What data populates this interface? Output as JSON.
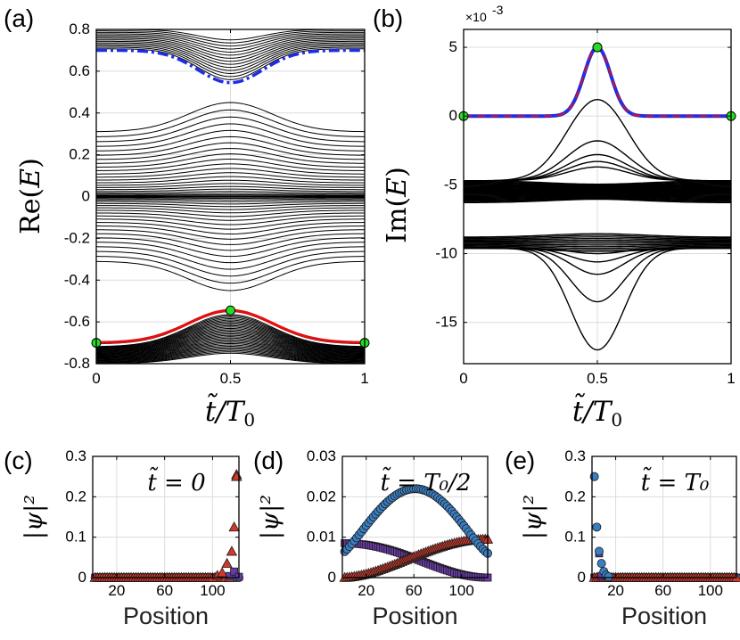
{
  "chart_data": [
    {
      "id": "a",
      "type": "line",
      "panel_label": "(a)",
      "xlabel": "t̃/T₀",
      "ylabel": "Re(E)",
      "xlim": [
        0,
        1
      ],
      "ylim": [
        -0.8,
        0.8
      ],
      "xticks": [
        0,
        0.5,
        1
      ],
      "xtick_labels": [
        "0",
        "0.5",
        "1"
      ],
      "yticks": [
        -0.8,
        -0.6,
        -0.4,
        -0.2,
        0,
        0.2,
        0.4,
        0.6,
        0.8
      ],
      "ytick_labels": [
        "-0.8",
        "-0.6",
        "-0.4",
        "-0.2",
        "0",
        "0.2",
        "0.4",
        "0.6",
        "0.8"
      ],
      "grid": true,
      "bands": [
        {
          "name": "lower band",
          "color": "#000000",
          "edge": [
            -0.7,
            -0.545
          ],
          "floor": [
            -0.8,
            -0.75
          ],
          "count": 32
        },
        {
          "name": "middle band",
          "color": "#000000",
          "top": [
            0.31,
            0.45
          ],
          "bottom": [
            -0.31,
            -0.45
          ],
          "count": 46
        },
        {
          "name": "upper band",
          "color": "#000000",
          "edge": [
            0.7,
            0.545
          ],
          "ceil": [
            0.8,
            0.75
          ],
          "count": 14
        }
      ],
      "series": [
        {
          "name": "upper edge state",
          "color": "#1f2ee6",
          "style": "dash-dot",
          "x": [
            0,
            0.5,
            1
          ],
          "y": [
            0.7,
            0.545,
            0.7
          ]
        },
        {
          "name": "lower edge state",
          "color": "#e01010",
          "style": "solid",
          "x": [
            0,
            0.5,
            1
          ],
          "y": [
            -0.7,
            -0.545,
            -0.7
          ]
        }
      ],
      "markers": [
        {
          "x": 0,
          "y": -0.7,
          "color": "#22dd22"
        },
        {
          "x": 0.5,
          "y": -0.545,
          "color": "#22dd22"
        },
        {
          "x": 1,
          "y": -0.7,
          "color": "#22dd22"
        }
      ]
    },
    {
      "id": "b",
      "type": "line",
      "panel_label": "(b)",
      "xlabel": "t̃/T₀",
      "ylabel": "Im(E)",
      "multiplier": "×10",
      "multiplier_exp": "-3",
      "xlim": [
        0,
        1
      ],
      "ylim": [
        -18,
        6.3
      ],
      "xticks": [
        0,
        0.5,
        1
      ],
      "xtick_labels": [
        "0",
        "0.5",
        "1"
      ],
      "yticks": [
        5,
        0,
        -5,
        -10,
        -15
      ],
      "ytick_labels": [
        "5",
        "0",
        "-5",
        "-10",
        "-15"
      ],
      "grid": true,
      "bands": [
        {
          "name": "band near -5",
          "range": [
            -4.7,
            -6.3
          ]
        },
        {
          "name": "band near -9",
          "range": [
            -8.8,
            -9.6
          ]
        }
      ],
      "series": [
        {
          "name": "edge state",
          "color": "#1f2ee6",
          "dash_color": "#e01010",
          "x": [
            0,
            0.5,
            1
          ],
          "y": [
            0,
            5,
            0
          ]
        },
        {
          "name": "peak branches",
          "color": "#000000",
          "x": [
            0,
            0.5,
            1
          ],
          "peaks": [
            1.2,
            -1.8,
            -2.8,
            -3.3,
            -3.7
          ]
        },
        {
          "name": "dip branches",
          "color": "#000000",
          "x": [
            0,
            0.5,
            1
          ],
          "dips": [
            -17,
            -13.5,
            -11.5,
            -10.6,
            -10.0
          ]
        }
      ],
      "markers": [
        {
          "x": 0,
          "y": 0,
          "color": "#22dd22"
        },
        {
          "x": 0.5,
          "y": 5,
          "color": "#22dd22"
        },
        {
          "x": 1,
          "y": 0,
          "color": "#22dd22"
        }
      ]
    },
    {
      "id": "c",
      "type": "scatter",
      "panel_label": "(c)",
      "annotation": "t̃ = 0",
      "xlabel": "Position",
      "ylabel": "|ψ|²",
      "xlim": [
        0,
        122
      ],
      "ylim": [
        0,
        0.3
      ],
      "xticks": [
        20,
        60,
        100
      ],
      "xtick_labels": [
        "20",
        "60",
        "100"
      ],
      "yticks": [
        0,
        0.1,
        0.2,
        0.3
      ],
      "ytick_labels": [
        "0",
        "0.1",
        "0.2",
        "0.3"
      ],
      "grid": true,
      "series": [
        {
          "name": "left-localized",
          "marker": "circle",
          "color": "#3a7fc1",
          "x": [],
          "y": []
        },
        {
          "name": "right-localized",
          "marker": "triangle",
          "color": "#d03a2c",
          "x": [
            100,
            104,
            108,
            112,
            116,
            118,
            120,
            122
          ],
          "y": [
            0,
            0.005,
            0.012,
            0.035,
            0.065,
            0.125,
            0.255,
            0.25
          ]
        },
        {
          "name": "bulk",
          "marker": "square",
          "color": "#6a3aa8",
          "x": [
            114,
            118,
            122
          ],
          "y": [
            0.004,
            0.015,
            0.002
          ]
        }
      ]
    },
    {
      "id": "d",
      "type": "scatter",
      "panel_label": "(d)",
      "annotation": "t̃ = T₀/2",
      "xlabel": "Position",
      "ylabel": "|ψ|²",
      "xlim": [
        0,
        122
      ],
      "ylim": [
        0,
        0.03
      ],
      "xticks": [
        20,
        60,
        100
      ],
      "xtick_labels": [
        "20",
        "60",
        "100"
      ],
      "yticks": [
        0,
        0.01,
        0.02,
        0.03
      ],
      "ytick_labels": [
        "0",
        "0.01",
        "0.02",
        "0.03"
      ],
      "grid": true,
      "series": [
        {
          "name": "circle-marker state",
          "marker": "circle",
          "color": "#3a7fc1",
          "peak_x": 60,
          "peak_y": 0.022,
          "edge_y": 0.006
        },
        {
          "name": "triangle-marker state",
          "marker": "triangle",
          "color": "#d03a2c",
          "start_y": 0.0,
          "end_y": 0.0095
        },
        {
          "name": "square-marker state",
          "marker": "square",
          "color": "#6a3aa8",
          "start_y": 0.0085,
          "mid_y": 0.005,
          "end_y": 0.0
        }
      ]
    },
    {
      "id": "e",
      "type": "scatter",
      "panel_label": "(e)",
      "annotation": "t̃ = T₀",
      "xlabel": "Position",
      "ylabel": "|ψ|²",
      "xlim": [
        0,
        122
      ],
      "ylim": [
        0,
        0.3
      ],
      "xticks": [
        20,
        60,
        100
      ],
      "xtick_labels": [
        "20",
        "60",
        "100"
      ],
      "yticks": [
        0,
        0.1,
        0.2,
        0.3
      ],
      "ytick_labels": [
        "0",
        "0.1",
        "0.2",
        "0.3"
      ],
      "grid": true,
      "series": [
        {
          "name": "left-localized",
          "marker": "circle",
          "color": "#3a7fc1",
          "x": [
            2,
            4,
            6,
            8,
            10,
            12,
            14
          ],
          "y": [
            0.25,
            0.125,
            0.065,
            0.035,
            0.015,
            0.006,
            0.002
          ]
        },
        {
          "name": "right-localized",
          "marker": "triangle",
          "color": "#d03a2c",
          "x": [],
          "y": []
        },
        {
          "name": "bulk",
          "marker": "square",
          "color": "#6a3aa8",
          "x": [
            6,
            8
          ],
          "y": [
            0.06,
            0.004
          ]
        }
      ]
    }
  ]
}
